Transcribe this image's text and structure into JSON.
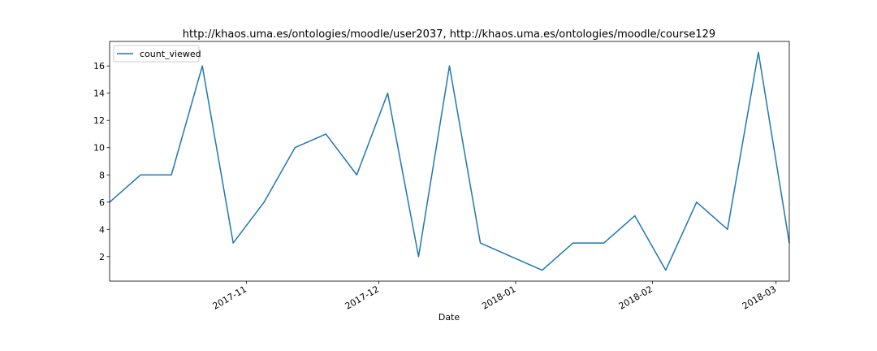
{
  "chart_data": {
    "type": "line",
    "title": "http://khaos.uma.es/ontologies/moodle/user2037, http://khaos.uma.es/ontologies/moodle/course129",
    "xlabel": "Date",
    "ylabel": "",
    "x": [
      "2017-10-01",
      "2017-10-08",
      "2017-10-15",
      "2017-10-22",
      "2017-10-29",
      "2017-11-05",
      "2017-11-12",
      "2017-11-19",
      "2017-11-26",
      "2017-12-03",
      "2017-12-10",
      "2017-12-17",
      "2017-12-24",
      "2018-01-07",
      "2018-01-14",
      "2018-01-21",
      "2018-01-28",
      "2018-02-04",
      "2018-02-11",
      "2018-02-18",
      "2018-02-25",
      "2018-03-04"
    ],
    "series": [
      {
        "name": "count_viewed",
        "color": "#1f77b4",
        "values": [
          6,
          8,
          8,
          16,
          3,
          6,
          10,
          11,
          8,
          14,
          2,
          16,
          3,
          1,
          3,
          3,
          5,
          1,
          6,
          4,
          17,
          3
        ]
      }
    ],
    "xlim": [
      "2017-10-01",
      "2018-03-04"
    ],
    "ylim": [
      0.2,
      17.8
    ],
    "yticks": [
      2,
      4,
      6,
      8,
      10,
      12,
      14,
      16
    ],
    "xticks": [
      {
        "date": "2017-11-01",
        "label": "2017-11"
      },
      {
        "date": "2017-12-01",
        "label": "2017-12"
      },
      {
        "date": "2018-01-01",
        "label": "2018-01"
      },
      {
        "date": "2018-02-01",
        "label": "2018-02"
      },
      {
        "date": "2018-03-01",
        "label": "2018-03"
      }
    ],
    "legend": {
      "position": "top-left"
    },
    "grid": false
  }
}
